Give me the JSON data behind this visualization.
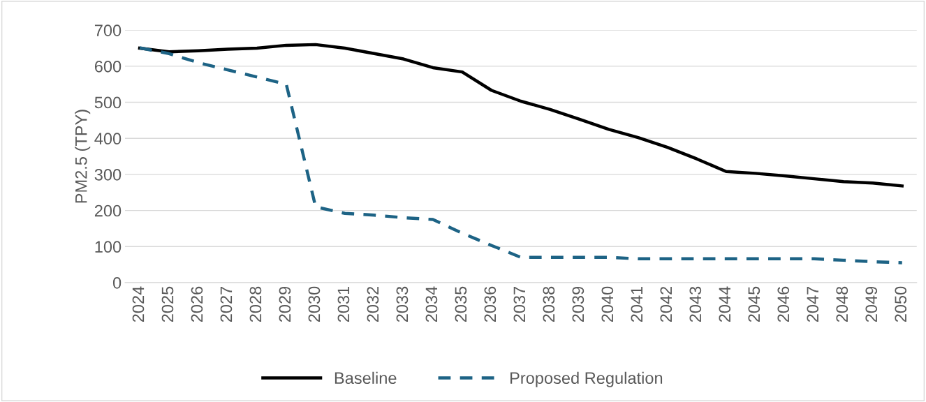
{
  "chart_data": {
    "type": "line",
    "ylabel": "PM2.5 (TPY)",
    "categories": [
      "2024",
      "2025",
      "2026",
      "2027",
      "2028",
      "2029",
      "2030",
      "2031",
      "2032",
      "2033",
      "2034",
      "2035",
      "2036",
      "2037",
      "2038",
      "2039",
      "2040",
      "2041",
      "2042",
      "2043",
      "2044",
      "2045",
      "2046",
      "2047",
      "2048",
      "2049",
      "2050"
    ],
    "series": [
      {
        "name": "Baseline",
        "color": "#000000",
        "line_style": "solid",
        "values": [
          650,
          640,
          643,
          647,
          650,
          658,
          660,
          650,
          635,
          620,
          596,
          584,
          533,
          503,
          480,
          453,
          425,
          402,
          375,
          343,
          308,
          303,
          296,
          288,
          280,
          276,
          268
        ]
      },
      {
        "name": "Proposed Regulation",
        "color": "#1d6385",
        "line_style": "dashed",
        "values": [
          651,
          635,
          610,
          590,
          570,
          550,
          210,
          192,
          187,
          180,
          175,
          137,
          103,
          70,
          70,
          70,
          70,
          66,
          66,
          66,
          66,
          66,
          66,
          66,
          62,
          58,
          55
        ]
      }
    ],
    "ylim": [
      0,
      700
    ],
    "yticks": [
      0,
      100,
      200,
      300,
      400,
      500,
      600,
      700
    ],
    "grid": "y",
    "legend": "bottom",
    "marker": "none"
  }
}
